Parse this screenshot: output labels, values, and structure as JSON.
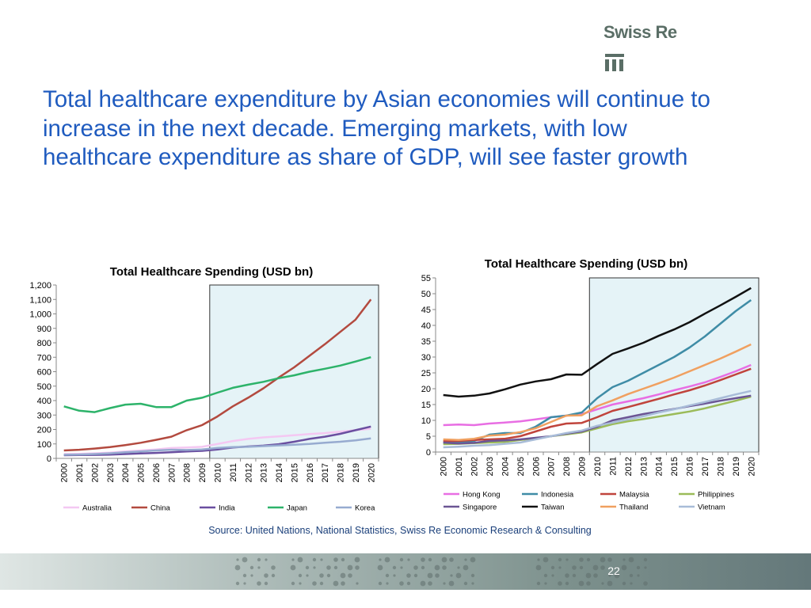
{
  "brand": {
    "name": "Swiss Re",
    "accent": "#1f5bbf",
    "logo_color": "#5a6e66"
  },
  "headline": "Total healthcare expenditure by Asian economies will continue to increase in the next decade.  Emerging markets, with low healthcare expenditure as share of GDP, will see faster growth",
  "source": "Source: United Nations, National Statistics, Swiss Re Economic Research & Consulting",
  "page_number": "22",
  "chart_data": [
    {
      "type": "line",
      "title": "Total Healthcare Spending (USD bn)",
      "xlabel": "",
      "ylabel": "",
      "x": [
        "2000",
        "2001",
        "2002",
        "2003",
        "2004",
        "2005",
        "2006",
        "2007",
        "2008",
        "2009",
        "2010",
        "2011",
        "2012",
        "2013",
        "2014",
        "2015",
        "2016",
        "2017",
        "2018",
        "2019",
        "2020"
      ],
      "ylim": [
        0,
        1200
      ],
      "yticks": [
        0,
        100,
        200,
        300,
        400,
        500,
        600,
        700,
        800,
        900,
        1000,
        1100,
        1200
      ],
      "ytick_labels": [
        "0",
        "100",
        "200",
        "300",
        "400",
        "500",
        "600",
        "700",
        "800",
        "900",
        "1,000",
        "1,100",
        "1,200"
      ],
      "forecast_shade": {
        "from": "2010",
        "to": "2020",
        "color": "#e5f3f7"
      },
      "grid": false,
      "legend_position": "bottom",
      "series": [
        {
          "name": "Australia",
          "color": "#f4c8f2",
          "values": [
            30,
            32,
            35,
            40,
            48,
            55,
            62,
            72,
            75,
            80,
            100,
            120,
            135,
            145,
            152,
            160,
            168,
            175,
            185,
            195,
            205
          ]
        },
        {
          "name": "China",
          "color": "#b34a3f",
          "values": [
            55,
            60,
            68,
            78,
            92,
            108,
            128,
            150,
            195,
            230,
            290,
            360,
            420,
            485,
            560,
            630,
            710,
            790,
            875,
            960,
            1100
          ]
        },
        {
          "name": "India",
          "color": "#6a4fa0",
          "values": [
            22,
            23,
            24,
            26,
            30,
            34,
            38,
            42,
            48,
            52,
            62,
            75,
            82,
            88,
            98,
            115,
            135,
            150,
            170,
            195,
            220
          ]
        },
        {
          "name": "Japan",
          "color": "#2db36a",
          "values": [
            360,
            330,
            320,
            348,
            372,
            378,
            355,
            355,
            400,
            420,
            455,
            488,
            510,
            530,
            555,
            575,
            600,
            620,
            642,
            670,
            700
          ]
        },
        {
          "name": "Korea",
          "color": "#97abd0",
          "values": [
            25,
            27,
            30,
            35,
            42,
            48,
            55,
            60,
            58,
            62,
            72,
            78,
            80,
            85,
            90,
            95,
            100,
            108,
            115,
            125,
            138
          ]
        }
      ]
    },
    {
      "type": "line",
      "title": "Total Healthcare Spending (USD bn)",
      "xlabel": "",
      "ylabel": "",
      "x": [
        "2000",
        "2001",
        "2002",
        "2003",
        "2004",
        "2005",
        "2006",
        "2007",
        "2008",
        "2009",
        "2010",
        "2011",
        "2012",
        "2013",
        "2014",
        "2015",
        "2016",
        "2017",
        "2018",
        "2019",
        "2020"
      ],
      "ylim": [
        0,
        55
      ],
      "yticks": [
        0,
        5,
        10,
        15,
        20,
        25,
        30,
        35,
        40,
        45,
        50,
        55
      ],
      "ytick_labels": [
        "0",
        "5",
        "10",
        "15",
        "20",
        "25",
        "30",
        "35",
        "40",
        "45",
        "50",
        "55"
      ],
      "forecast_shade": {
        "from": "2010",
        "to": "2020",
        "color": "#e5f3f7"
      },
      "grid": false,
      "legend_position": "bottom",
      "series": [
        {
          "name": "Hong Kong",
          "color": "#e86ee3",
          "values": [
            8.5,
            8.7,
            8.5,
            9.0,
            9.3,
            9.7,
            10.3,
            11.0,
            11.5,
            12.0,
            13.5,
            15.0,
            16.0,
            17.0,
            18.2,
            19.5,
            20.7,
            22.0,
            23.7,
            25.5,
            27.5
          ]
        },
        {
          "name": "Indonesia",
          "color": "#3f8ca6",
          "values": [
            3.0,
            3.1,
            3.5,
            5.5,
            6.0,
            6.0,
            8.0,
            11.0,
            11.5,
            12.5,
            17.0,
            20.5,
            22.5,
            25.0,
            27.5,
            30.0,
            33.0,
            36.5,
            40.5,
            44.5,
            48.0
          ]
        },
        {
          "name": "Malaysia",
          "color": "#c0443c",
          "values": [
            3.5,
            3.5,
            3.8,
            4.0,
            4.2,
            5.0,
            6.5,
            8.0,
            9.0,
            9.2,
            11.0,
            13.0,
            14.2,
            15.5,
            16.8,
            18.2,
            19.5,
            21.0,
            22.7,
            24.5,
            26.3
          ]
        },
        {
          "name": "Philippines",
          "color": "#9bbb59",
          "values": [
            2.5,
            2.6,
            2.8,
            3.0,
            3.2,
            3.8,
            4.3,
            5.0,
            5.6,
            6.2,
            7.5,
            8.8,
            9.7,
            10.4,
            11.2,
            12.0,
            12.8,
            13.8,
            15.0,
            16.2,
            17.5
          ]
        },
        {
          "name": "Singapore",
          "color": "#6b5594",
          "values": [
            3.0,
            2.7,
            2.9,
            3.5,
            3.7,
            4.0,
            4.5,
            5.0,
            5.8,
            6.5,
            8.0,
            10.0,
            11.0,
            12.0,
            12.8,
            13.6,
            14.5,
            15.3,
            16.2,
            17.0,
            17.8
          ]
        },
        {
          "name": "Taiwan",
          "color": "#111111",
          "values": [
            18.0,
            17.5,
            17.8,
            18.5,
            19.8,
            21.3,
            22.3,
            23.0,
            24.5,
            24.4,
            27.8,
            31.0,
            32.7,
            34.5,
            36.7,
            38.7,
            41.0,
            43.7,
            46.3,
            49.0,
            51.8
          ]
        },
        {
          "name": "Thailand",
          "color": "#f0a060",
          "values": [
            4.0,
            3.8,
            4.2,
            5.2,
            5.5,
            6.3,
            7.5,
            9.5,
            11.5,
            11.6,
            14.5,
            16.3,
            18.3,
            20.0,
            21.7,
            23.5,
            25.5,
            27.5,
            29.5,
            31.7,
            34.0
          ]
        },
        {
          "name": "Vietnam",
          "color": "#a8bcd8",
          "values": [
            1.5,
            1.7,
            2.0,
            2.2,
            2.6,
            3.0,
            4.0,
            5.0,
            6.0,
            6.8,
            8.3,
            9.3,
            10.3,
            11.3,
            12.5,
            13.5,
            14.7,
            15.8,
            17.0,
            18.2,
            19.3
          ]
        }
      ]
    }
  ]
}
